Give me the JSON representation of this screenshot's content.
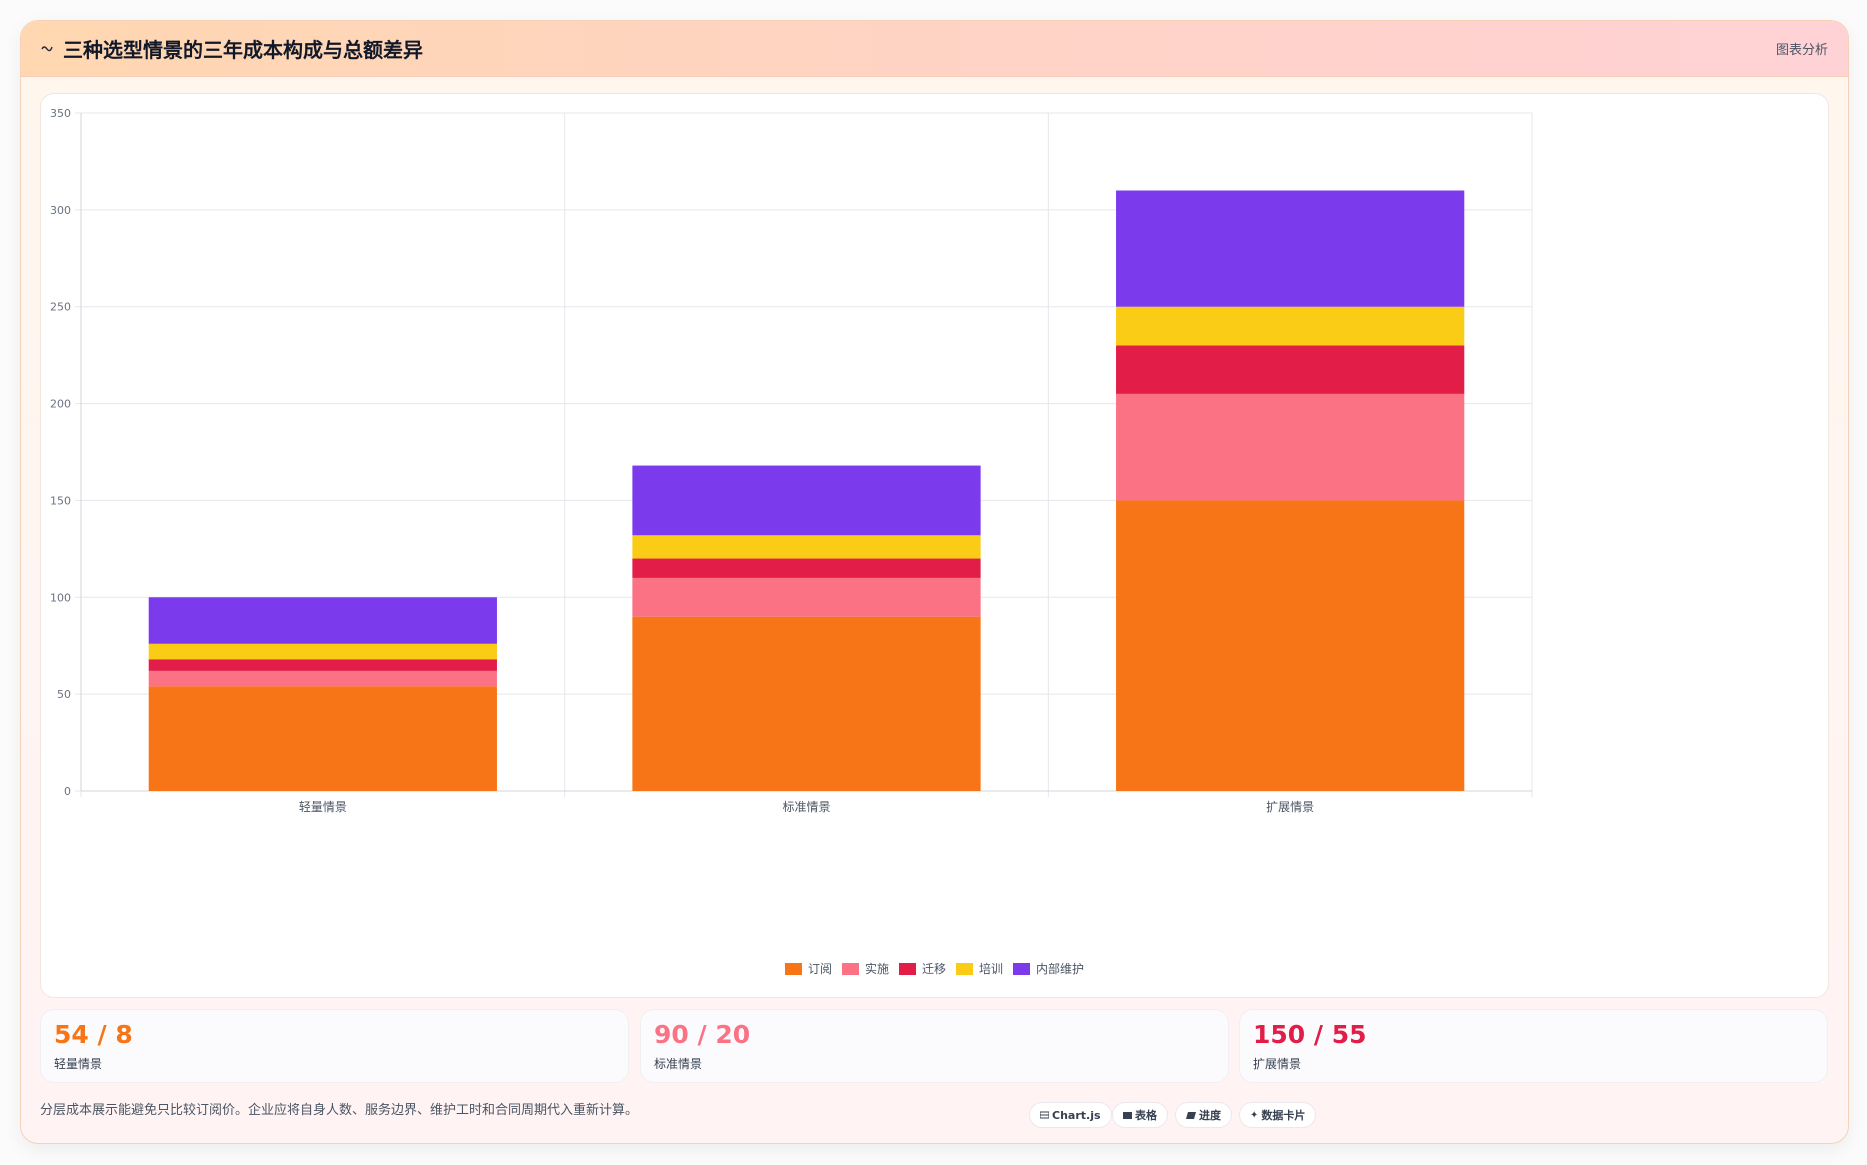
{
  "header": {
    "icon": "wave-icon",
    "title": "三种选型情景的三年成本构成与总额差异",
    "tag": "图表分析"
  },
  "chart_data": {
    "type": "bar",
    "stacked": true,
    "categories": [
      "轻量情景",
      "标准情景",
      "扩展情景"
    ],
    "series": [
      {
        "name": "订阅",
        "color": "#f77517",
        "values": [
          54,
          90,
          150
        ]
      },
      {
        "name": "实施",
        "color": "#fb7285",
        "values": [
          8,
          20,
          55
        ]
      },
      {
        "name": "迁移",
        "color": "#e11d48",
        "values": [
          6,
          10,
          25
        ]
      },
      {
        "name": "培训",
        "color": "#facc15",
        "values": [
          8,
          12,
          20
        ]
      },
      {
        "name": "内部维护",
        "color": "#7c3aed",
        "values": [
          24,
          36,
          60
        ]
      }
    ],
    "ylim": [
      0,
      350
    ],
    "yticks": [
      0,
      50,
      100,
      150,
      200,
      250,
      300,
      350
    ],
    "grid": true,
    "legend": "bottom"
  },
  "stats": [
    {
      "value": "54 / 8",
      "label": "轻量情景",
      "color": "#f77517"
    },
    {
      "value": "90 / 20",
      "label": "标准情景",
      "color": "#fb7285"
    },
    {
      "value": "150 / 55",
      "label": "扩展情景",
      "color": "#e11d48"
    }
  ],
  "footer": {
    "note": "分层成本展示能避免只比较订阅价。企业应将自身人数、服务边界、维护工时和合同周期代入重新计算。"
  },
  "chips": [
    {
      "icon": "chart-icon",
      "label": "Chart.js"
    },
    {
      "icon": "table-icon",
      "label": "表格"
    },
    {
      "icon": "progress-icon",
      "label": "进度"
    },
    {
      "icon": "sparkle-icon",
      "label": "数据卡片"
    }
  ]
}
